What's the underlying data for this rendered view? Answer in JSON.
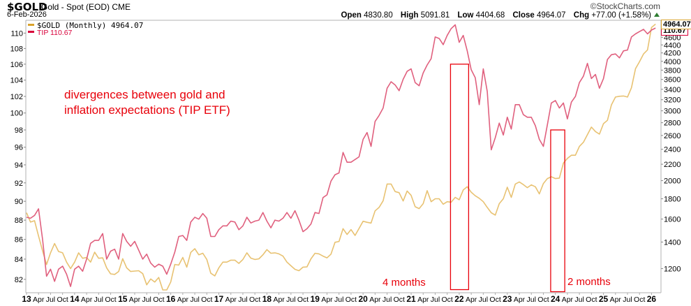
{
  "header": {
    "symbol": "$GOLD",
    "description": "Gold - Spot (EOD) CME",
    "date": "6-Feb-2026",
    "logo": "©StockCharts.com",
    "open_label": "Open",
    "open": "4830.80",
    "high_label": "High",
    "high": "5091.81",
    "low_label": "Low",
    "low": "4404.68",
    "close_label": "Close",
    "close": "4964.07",
    "chg_label": "Chg",
    "chg": "+77.00 (+1.58%)",
    "chg_direction": "up"
  },
  "legend": {
    "gold": "$GOLD (Monthly) 4964.07",
    "tip": "TIP 110.67"
  },
  "annotations": {
    "note": "divergences between gold and\ninflation expectations (TIP ETF)",
    "box1_label": "4 months",
    "box2_label": "2 months"
  },
  "colors": {
    "gold_line": "#e8c272",
    "tip_line": "#e0607e",
    "gold_legend": "#d9a22a",
    "tip_legend": "#d8003a",
    "annotation": "#e8000a",
    "axis": "#b0b0b0"
  },
  "chart_data": {
    "type": "line",
    "title": "$GOLD Gold - Spot (EOD) CME",
    "frequency": "monthly",
    "x": [
      "2013-01",
      "2013-02",
      "2013-03",
      "2013-04",
      "2013-05",
      "2013-06",
      "2013-07",
      "2013-08",
      "2013-09",
      "2013-10",
      "2013-11",
      "2013-12",
      "2014-01",
      "2014-02",
      "2014-03",
      "2014-04",
      "2014-05",
      "2014-06",
      "2014-07",
      "2014-08",
      "2014-09",
      "2014-10",
      "2014-11",
      "2014-12",
      "2015-01",
      "2015-02",
      "2015-03",
      "2015-04",
      "2015-05",
      "2015-06",
      "2015-07",
      "2015-08",
      "2015-09",
      "2015-10",
      "2015-11",
      "2015-12",
      "2016-01",
      "2016-02",
      "2016-03",
      "2016-04",
      "2016-05",
      "2016-06",
      "2016-07",
      "2016-08",
      "2016-09",
      "2016-10",
      "2016-11",
      "2016-12",
      "2017-01",
      "2017-02",
      "2017-03",
      "2017-04",
      "2017-05",
      "2017-06",
      "2017-07",
      "2017-08",
      "2017-09",
      "2017-10",
      "2017-11",
      "2017-12",
      "2018-01",
      "2018-02",
      "2018-03",
      "2018-04",
      "2018-05",
      "2018-06",
      "2018-07",
      "2018-08",
      "2018-09",
      "2018-10",
      "2018-11",
      "2018-12",
      "2019-01",
      "2019-02",
      "2019-03",
      "2019-04",
      "2019-05",
      "2019-06",
      "2019-07",
      "2019-08",
      "2019-09",
      "2019-10",
      "2019-11",
      "2019-12",
      "2020-01",
      "2020-02",
      "2020-03",
      "2020-04",
      "2020-05",
      "2020-06",
      "2020-07",
      "2020-08",
      "2020-09",
      "2020-10",
      "2020-11",
      "2020-12",
      "2021-01",
      "2021-02",
      "2021-03",
      "2021-04",
      "2021-05",
      "2021-06",
      "2021-07",
      "2021-08",
      "2021-09",
      "2021-10",
      "2021-11",
      "2021-12",
      "2022-01",
      "2022-02",
      "2022-03",
      "2022-04",
      "2022-05",
      "2022-06",
      "2022-07",
      "2022-08",
      "2022-09",
      "2022-10",
      "2022-11",
      "2022-12",
      "2023-01",
      "2023-02",
      "2023-03",
      "2023-04",
      "2023-05",
      "2023-06",
      "2023-07",
      "2023-08",
      "2023-09",
      "2023-10",
      "2023-11",
      "2023-12",
      "2024-01",
      "2024-02",
      "2024-03",
      "2024-04",
      "2024-05",
      "2024-06",
      "2024-07",
      "2024-08",
      "2024-09",
      "2024-10",
      "2024-11",
      "2024-12",
      "2025-01",
      "2025-02",
      "2025-03",
      "2025-04",
      "2025-05",
      "2025-06",
      "2025-07",
      "2025-08",
      "2025-09",
      "2025-10",
      "2025-11",
      "2025-12",
      "2026-01",
      "2026-02"
    ],
    "series": [
      {
        "name": "$GOLD (Monthly)",
        "axis": "right",
        "last_value": "4964.07",
        "values": [
          1660,
          1572,
          1585,
          1450,
          1330,
          1229,
          1315,
          1388,
          1325,
          1315,
          1246,
          1200,
          1246,
          1315,
          1274,
          1280,
          1246,
          1320,
          1274,
          1277,
          1205,
          1164,
          1160,
          1180,
          1271,
          1205,
          1180,
          1183,
          1185,
          1165,
          1092,
          1130,
          1110,
          1140,
          1060,
          1060,
          1110,
          1229,
          1225,
          1280,
          1210,
          1318,
          1347,
          1300,
          1312,
          1265,
          1168,
          1150,
          1205,
          1246,
          1246,
          1260,
          1260,
          1237,
          1265,
          1315,
          1275,
          1265,
          1270,
          1300,
          1340,
          1312,
          1315,
          1307,
          1290,
          1246,
          1220,
          1195,
          1185,
          1210,
          1212,
          1270,
          1312,
          1307,
          1290,
          1277,
          1305,
          1398,
          1405,
          1513,
          1463,
          1505,
          1455,
          1515,
          1580,
          1570,
          1563,
          1678,
          1712,
          1779,
          1961,
          1961,
          1877,
          1865,
          1777,
          1883,
          1836,
          1719,
          1700,
          1750,
          1887,
          1770,
          1800,
          1800,
          1744,
          1770,
          1765,
          1815,
          1790,
          1895,
          1930,
          1870,
          1832,
          1805,
          1770,
          1712,
          1660,
          1637,
          1750,
          1800,
          1925,
          1815,
          1961,
          1985,
          1955,
          1920,
          1952,
          1930,
          1852,
          1967,
          2024,
          2046,
          2024,
          2030,
          2215,
          2275,
          2318,
          2318,
          2440,
          2500,
          2612,
          2730,
          2660,
          2620,
          2785,
          2840,
          3106,
          3250,
          3265,
          3270,
          3250,
          3430,
          3832,
          3990,
          4175,
          4275,
          4868,
          4964.07
        ]
      },
      {
        "name": "TIP",
        "axis": "left",
        "last_value": "110.67",
        "values": [
          88.3,
          88.2,
          88.5,
          89.2,
          86.0,
          82.3,
          83.0,
          81.8,
          83.0,
          83.3,
          82.5,
          81.3,
          83.0,
          83.3,
          82.8,
          84.0,
          85.6,
          85.9,
          85.9,
          86.6,
          84.0,
          84.8,
          85.0,
          84.0,
          86.6,
          85.8,
          85.3,
          85.8,
          84.9,
          84.0,
          84.5,
          83.6,
          83.2,
          83.5,
          83.3,
          82.5,
          83.5,
          84.7,
          86.3,
          86.4,
          85.9,
          87.8,
          88.3,
          88.1,
          88.7,
          88.2,
          86.3,
          86.3,
          87.0,
          87.4,
          87.4,
          87.9,
          87.8,
          87.0,
          87.4,
          88.3,
          87.7,
          87.9,
          88.0,
          88.8,
          87.9,
          87.2,
          88.0,
          87.9,
          88.2,
          88.8,
          88.2,
          89.0,
          88.0,
          86.8,
          87.1,
          87.6,
          88.8,
          88.7,
          90.4,
          90.7,
          92.2,
          92.9,
          93.1,
          95.4,
          94.3,
          94.3,
          94.6,
          94.9,
          96.9,
          97.7,
          96.1,
          99.0,
          99.7,
          100.6,
          103.0,
          103.8,
          103.4,
          102.7,
          104.1,
          105.1,
          105.4,
          103.7,
          103.3,
          104.9,
          105.9,
          106.7,
          109.5,
          109.3,
          108.5,
          109.7,
          110.6,
          111.1,
          108.8,
          109.7,
          107.7,
          105.3,
          104.3,
          101.0,
          105.4,
          102.6,
          95.7,
          97.1,
          98.8,
          97.4,
          99.5,
          98.1,
          101.0,
          101.0,
          99.8,
          99.5,
          99.5,
          98.5,
          96.9,
          96.1,
          98.6,
          101.2,
          101.5,
          100.6,
          101.2,
          99.3,
          101.3,
          102.0,
          103.7,
          104.5,
          106.1,
          104.2,
          104.7,
          103.0,
          104.2,
          106.6,
          107.2,
          107.3,
          106.8,
          107.7,
          107.8,
          109.5,
          109.9,
          110.2,
          110.5,
          109.9,
          110.4,
          110.67
        ]
      }
    ],
    "left_axis": {
      "scale": "log",
      "ylim": [
        80.7,
        111.7
      ],
      "ticks": [
        110,
        108,
        106,
        104,
        102,
        100,
        98,
        96,
        94,
        92,
        90,
        88,
        86,
        84,
        82
      ]
    },
    "right_axis": {
      "scale": "log",
      "ylim": [
        1043,
        5077
      ],
      "ticks": [
        4600,
        4400,
        4200,
        4000,
        3800,
        3600,
        3400,
        3200,
        3000,
        2800,
        2600,
        2400,
        2200,
        2000,
        1800,
        1600,
        1400,
        1200
      ]
    },
    "x_ticks": [
      {
        "x": "2013-01",
        "label": "13",
        "major": true
      },
      {
        "x": "2013-04",
        "label": "Apr"
      },
      {
        "x": "2013-07",
        "label": "Jul"
      },
      {
        "x": "2013-10",
        "label": "Oct"
      },
      {
        "x": "2014-01",
        "label": "14",
        "major": true
      },
      {
        "x": "2014-04",
        "label": "Apr"
      },
      {
        "x": "2014-07",
        "label": "Jul"
      },
      {
        "x": "2014-10",
        "label": "Oct"
      },
      {
        "x": "2015-01",
        "label": "15",
        "major": true
      },
      {
        "x": "2015-04",
        "label": "Apr"
      },
      {
        "x": "2015-07",
        "label": "Jul"
      },
      {
        "x": "2015-10",
        "label": "Oct"
      },
      {
        "x": "2016-01",
        "label": "16",
        "major": true
      },
      {
        "x": "2016-04",
        "label": "Apr"
      },
      {
        "x": "2016-07",
        "label": "Jul"
      },
      {
        "x": "2016-10",
        "label": "Oct"
      },
      {
        "x": "2017-01",
        "label": "17",
        "major": true
      },
      {
        "x": "2017-04",
        "label": "Apr"
      },
      {
        "x": "2017-07",
        "label": "Jul"
      },
      {
        "x": "2017-10",
        "label": "Oct"
      },
      {
        "x": "2018-01",
        "label": "18",
        "major": true
      },
      {
        "x": "2018-04",
        "label": "Apr"
      },
      {
        "x": "2018-07",
        "label": "Jul"
      },
      {
        "x": "2018-10",
        "label": "Oct"
      },
      {
        "x": "2019-01",
        "label": "19",
        "major": true
      },
      {
        "x": "2019-04",
        "label": "Apr"
      },
      {
        "x": "2019-07",
        "label": "Jul"
      },
      {
        "x": "2019-10",
        "label": "Oct"
      },
      {
        "x": "2020-01",
        "label": "20",
        "major": true
      },
      {
        "x": "2020-04",
        "label": "Apr"
      },
      {
        "x": "2020-07",
        "label": "Jul"
      },
      {
        "x": "2020-10",
        "label": "Oct"
      },
      {
        "x": "2021-01",
        "label": "21",
        "major": true
      },
      {
        "x": "2021-04",
        "label": "Apr"
      },
      {
        "x": "2021-07",
        "label": "Jul"
      },
      {
        "x": "2021-10",
        "label": "Oct"
      },
      {
        "x": "2022-01",
        "label": "22",
        "major": true
      },
      {
        "x": "2022-04",
        "label": "Apr"
      },
      {
        "x": "2022-07",
        "label": "Jul"
      },
      {
        "x": "2022-10",
        "label": "Oct"
      },
      {
        "x": "2023-01",
        "label": "23",
        "major": true
      },
      {
        "x": "2023-04",
        "label": "Apr"
      },
      {
        "x": "2023-07",
        "label": "Jul"
      },
      {
        "x": "2023-10",
        "label": "Oct"
      },
      {
        "x": "2024-01",
        "label": "24",
        "major": true
      },
      {
        "x": "2024-04",
        "label": "Apr"
      },
      {
        "x": "2024-07",
        "label": "Jul"
      },
      {
        "x": "2024-10",
        "label": "Oct"
      },
      {
        "x": "2025-01",
        "label": "25",
        "major": true
      },
      {
        "x": "2025-04",
        "label": "Apr"
      },
      {
        "x": "2025-07",
        "label": "Jul"
      },
      {
        "x": "2025-10",
        "label": "Oct"
      },
      {
        "x": "2026-01",
        "label": "26",
        "major": true
      }
    ],
    "highlight_boxes": [
      {
        "from": "2021-11",
        "to": "2022-03",
        "top": 106.0,
        "bottom": 81.0,
        "axis": "left"
      },
      {
        "from": "2023-12",
        "to": "2024-03",
        "top": 98.0,
        "bottom": 80.8,
        "axis": "left"
      }
    ],
    "grid": false,
    "legend_position": "top-left"
  }
}
